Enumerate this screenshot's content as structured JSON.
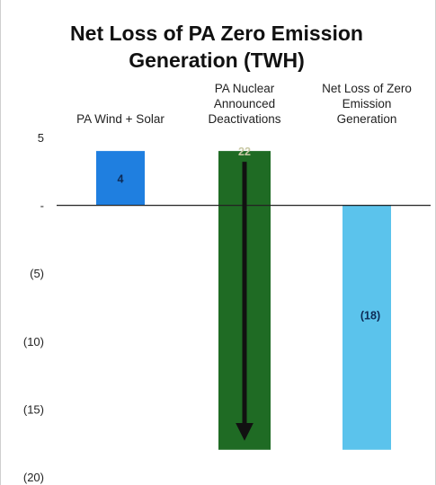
{
  "chart_data": {
    "type": "bar",
    "title": "Net Loss of PA Zero Emission Generation (TWH)",
    "categories": [
      "PA Wind + Solar",
      "PA Nuclear Announced Deactivations",
      "Net Loss of Zero Emission Generation"
    ],
    "category_lines": [
      [
        "PA Wind + Solar"
      ],
      [
        "PA Nuclear",
        "Announced",
        "Deactivations"
      ],
      [
        "Net Loss of Zero",
        "Emission",
        "Generation"
      ]
    ],
    "values": [
      4,
      22,
      -18
    ],
    "bars": [
      {
        "base": 0,
        "top": 4
      },
      {
        "base": 4,
        "top": -18
      },
      {
        "base": 0,
        "top": -18
      }
    ],
    "data_labels": [
      "4",
      "22",
      "(18)"
    ],
    "colors": [
      "#1f7fe0",
      "#1f6b24",
      "#5bc3ec"
    ],
    "arrow_on_bar": 1,
    "yticks": [
      5,
      0,
      -5,
      -10,
      -15,
      -20
    ],
    "ytick_labels": [
      "5",
      "-",
      "(5)",
      "(10)",
      "(15)",
      "(20)"
    ],
    "ylim": [
      -20,
      5
    ],
    "xlabel": "",
    "ylabel": "",
    "grid": false,
    "legend": "none"
  }
}
